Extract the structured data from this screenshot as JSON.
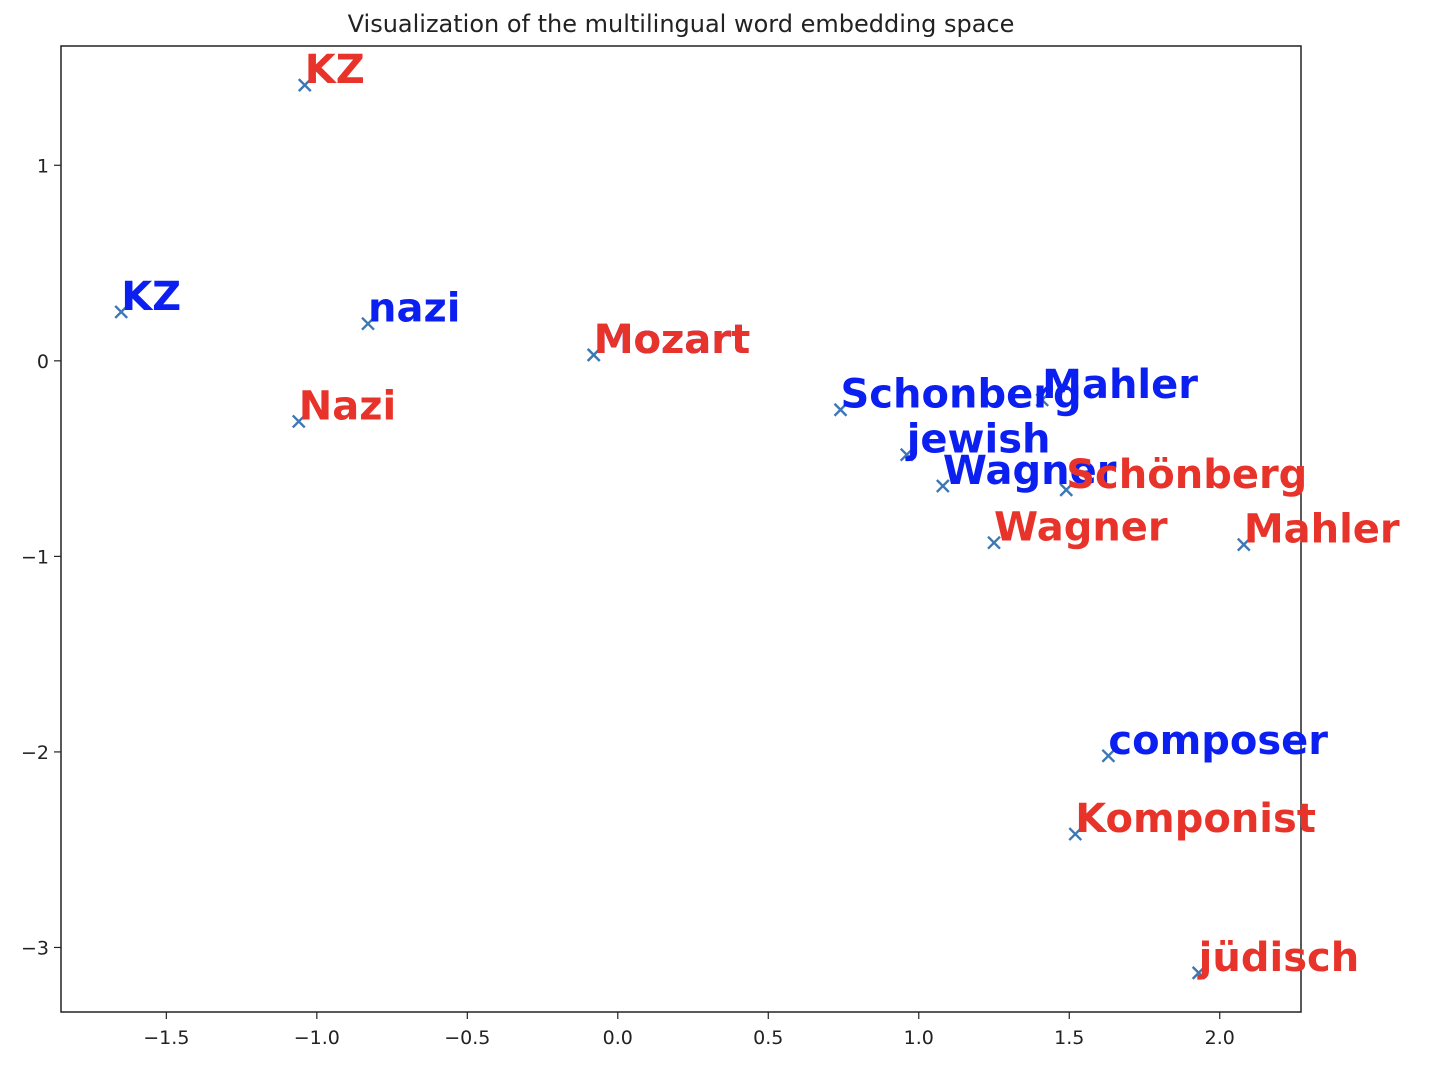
{
  "chart_data": {
    "type": "scatter",
    "title": "Visualization of the multilingual word embedding space",
    "xlabel": "",
    "ylabel": "",
    "xlim": [
      -1.85,
      2.27
    ],
    "ylim": [
      -3.33,
      1.61
    ],
    "xticks": [
      -1.5,
      -1.0,
      -0.5,
      0.0,
      0.5,
      1.0,
      1.5,
      2.0
    ],
    "xtick_labels": [
      "−1.5",
      "−1.0",
      "−0.5",
      "0.0",
      "0.5",
      "1.0",
      "1.5",
      "2.0"
    ],
    "yticks": [
      1,
      0,
      -1,
      -2,
      -3
    ],
    "ytick_labels": [
      "1",
      "0",
      "−1",
      "−2",
      "−3"
    ],
    "grid": false,
    "legend": "none",
    "marker": "x",
    "marker_color": "#3d78b5",
    "colors": {
      "english": "#0a1ff0",
      "german": "#e8332a"
    },
    "points": [
      {
        "label": "KZ",
        "x": -1.04,
        "y": 1.41,
        "group": "german"
      },
      {
        "label": "KZ",
        "x": -1.65,
        "y": 0.25,
        "group": "english"
      },
      {
        "label": "nazi",
        "x": -0.83,
        "y": 0.19,
        "group": "english"
      },
      {
        "label": "Nazi",
        "x": -1.06,
        "y": -0.31,
        "group": "german"
      },
      {
        "label": "Mozart",
        "x": -0.08,
        "y": 0.03,
        "group": "english"
      },
      {
        "label": "Mozart",
        "x": -0.08,
        "y": 0.03,
        "group": "german"
      },
      {
        "label": "Schonberg",
        "x": 0.74,
        "y": -0.25,
        "group": "english"
      },
      {
        "label": "Mahler",
        "x": 1.41,
        "y": -0.2,
        "group": "english"
      },
      {
        "label": "jewish",
        "x": 0.96,
        "y": -0.48,
        "group": "english"
      },
      {
        "label": "Wagner",
        "x": 1.08,
        "y": -0.64,
        "group": "english"
      },
      {
        "label": "Schönberg",
        "x": 1.49,
        "y": -0.66,
        "group": "german"
      },
      {
        "label": "Wagner",
        "x": 1.25,
        "y": -0.93,
        "group": "german"
      },
      {
        "label": "Mahler",
        "x": 2.08,
        "y": -0.94,
        "group": "german"
      },
      {
        "label": "composer",
        "x": 1.63,
        "y": -2.02,
        "group": "english"
      },
      {
        "label": "Komponist",
        "x": 1.52,
        "y": -2.42,
        "group": "german"
      },
      {
        "label": "jüdisch",
        "x": 1.93,
        "y": -3.13,
        "group": "german"
      }
    ]
  }
}
